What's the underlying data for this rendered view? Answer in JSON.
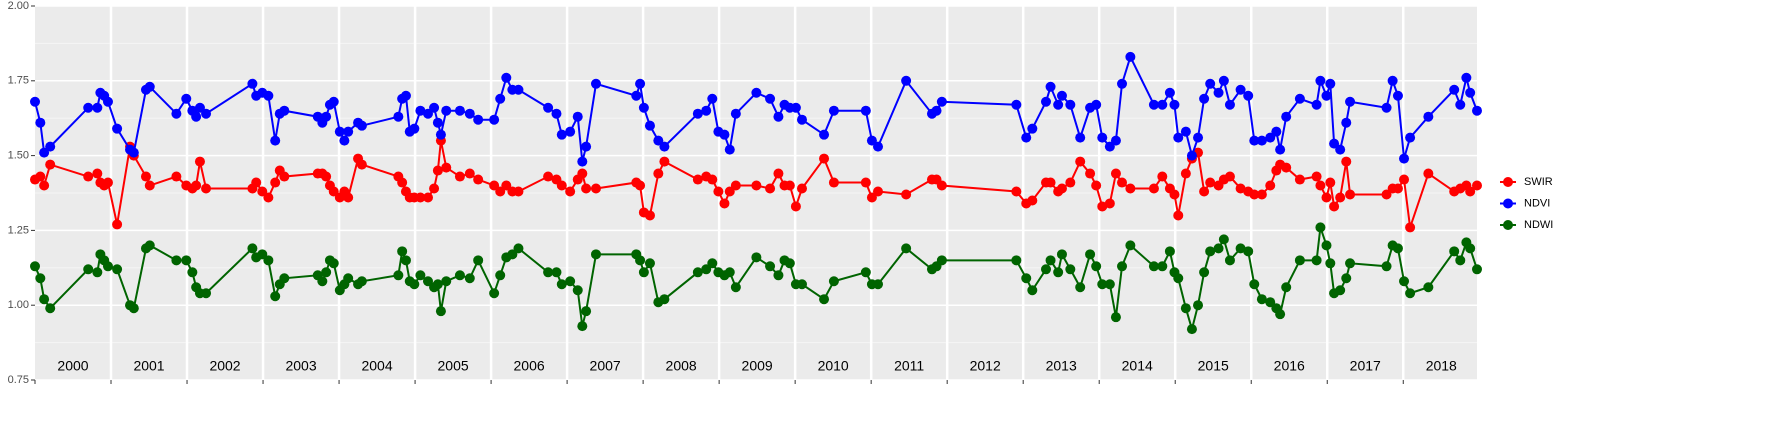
{
  "chart_data": {
    "type": "line",
    "x": [
      2000.0,
      2000.07,
      2000.12,
      2000.2,
      2000.7,
      2000.82,
      2000.86,
      2000.91,
      2000.96,
      2001.08,
      2001.25,
      2001.3,
      2001.46,
      2001.51,
      2001.86,
      2001.99,
      2002.07,
      2002.12,
      2002.17,
      2002.25,
      2002.86,
      2002.91,
      2002.99,
      2003.07,
      2003.16,
      2003.22,
      2003.28,
      2003.72,
      2003.78,
      2003.83,
      2003.88,
      2003.93,
      2004.01,
      2004.07,
      2004.12,
      2004.25,
      2004.3,
      2004.78,
      2004.83,
      2004.88,
      2004.93,
      2004.99,
      2005.07,
      2005.17,
      2005.25,
      2005.3,
      2005.34,
      2005.41,
      2005.59,
      2005.72,
      2005.83,
      2006.04,
      2006.12,
      2006.2,
      2006.28,
      2006.36,
      2006.75,
      2006.86,
      2006.93,
      2007.04,
      2007.14,
      2007.2,
      2007.25,
      2007.38,
      2007.91,
      2007.96,
      2008.01,
      2008.09,
      2008.2,
      2008.28,
      2008.72,
      2008.83,
      2008.91,
      2008.99,
      2009.07,
      2009.14,
      2009.22,
      2009.49,
      2009.67,
      2009.78,
      2009.86,
      2009.93,
      2010.01,
      2010.09,
      2010.38,
      2010.51,
      2010.93,
      2011.01,
      2011.09,
      2011.46,
      2011.8,
      2011.86,
      2011.93,
      2012.91,
      2013.04,
      2013.12,
      2013.3,
      2013.36,
      2013.46,
      2013.51,
      2013.62,
      2013.75,
      2013.88,
      2013.96,
      2014.04,
      2014.14,
      2014.22,
      2014.3,
      2014.41,
      2014.72,
      2014.83,
      2014.93,
      2014.99,
      2015.04,
      2015.14,
      2015.22,
      2015.3,
      2015.38,
      2015.46,
      2015.57,
      2015.64,
      2015.72,
      2015.86,
      2015.96,
      2016.04,
      2016.14,
      2016.25,
      2016.33,
      2016.38,
      2016.46,
      2016.64,
      2016.86,
      2016.91,
      2016.99,
      2017.04,
      2017.09,
      2017.17,
      2017.25,
      2017.3,
      2017.78,
      2017.86,
      2017.93,
      2018.01,
      2018.09,
      2018.33,
      2018.67,
      2018.75,
      2018.83,
      2018.88,
      2018.97
    ],
    "series": [
      {
        "name": "SWIR",
        "color": "#ff0000",
        "values": [
          1.42,
          1.43,
          1.4,
          1.47,
          1.43,
          1.44,
          1.41,
          1.4,
          1.41,
          1.27,
          1.53,
          1.5,
          1.43,
          1.4,
          1.43,
          1.4,
          1.39,
          1.4,
          1.48,
          1.39,
          1.39,
          1.41,
          1.38,
          1.36,
          1.41,
          1.45,
          1.43,
          1.44,
          1.44,
          1.43,
          1.4,
          1.38,
          1.36,
          1.38,
          1.36,
          1.49,
          1.47,
          1.43,
          1.41,
          1.38,
          1.36,
          1.36,
          1.36,
          1.36,
          1.39,
          1.45,
          1.55,
          1.46,
          1.43,
          1.44,
          1.42,
          1.4,
          1.38,
          1.4,
          1.38,
          1.38,
          1.43,
          1.42,
          1.4,
          1.38,
          1.42,
          1.44,
          1.39,
          1.39,
          1.41,
          1.4,
          1.31,
          1.3,
          1.44,
          1.48,
          1.42,
          1.43,
          1.42,
          1.38,
          1.34,
          1.38,
          1.4,
          1.4,
          1.39,
          1.44,
          1.4,
          1.4,
          1.33,
          1.39,
          1.49,
          1.41,
          1.41,
          1.36,
          1.38,
          1.37,
          1.42,
          1.42,
          1.4,
          1.38,
          1.34,
          1.35,
          1.41,
          1.41,
          1.38,
          1.39,
          1.41,
          1.48,
          1.44,
          1.4,
          1.33,
          1.34,
          1.44,
          1.41,
          1.39,
          1.39,
          1.43,
          1.39,
          1.37,
          1.3,
          1.44,
          1.49,
          1.51,
          1.38,
          1.41,
          1.4,
          1.42,
          1.43,
          1.39,
          1.38,
          1.37,
          1.37,
          1.4,
          1.45,
          1.47,
          1.46,
          1.42,
          1.43,
          1.4,
          1.36,
          1.41,
          1.33,
          1.36,
          1.48,
          1.37,
          1.37,
          1.39,
          1.39,
          1.42,
          1.26,
          1.44,
          1.38,
          1.39,
          1.4,
          1.38,
          1.4
        ]
      },
      {
        "name": "NDVI",
        "color": "#0000ff",
        "values": [
          1.68,
          1.61,
          1.51,
          1.53,
          1.66,
          1.66,
          1.71,
          1.7,
          1.68,
          1.59,
          1.52,
          1.51,
          1.72,
          1.73,
          1.64,
          1.69,
          1.65,
          1.63,
          1.66,
          1.64,
          1.74,
          1.7,
          1.71,
          1.7,
          1.55,
          1.64,
          1.65,
          1.63,
          1.61,
          1.63,
          1.67,
          1.68,
          1.58,
          1.55,
          1.58,
          1.61,
          1.6,
          1.63,
          1.69,
          1.7,
          1.58,
          1.59,
          1.65,
          1.64,
          1.66,
          1.61,
          1.57,
          1.65,
          1.65,
          1.64,
          1.62,
          1.62,
          1.69,
          1.76,
          1.72,
          1.72,
          1.66,
          1.64,
          1.57,
          1.58,
          1.63,
          1.48,
          1.53,
          1.74,
          1.7,
          1.74,
          1.66,
          1.6,
          1.55,
          1.53,
          1.64,
          1.65,
          1.69,
          1.58,
          1.57,
          1.52,
          1.64,
          1.71,
          1.69,
          1.63,
          1.67,
          1.66,
          1.66,
          1.62,
          1.57,
          1.65,
          1.65,
          1.55,
          1.53,
          1.75,
          1.64,
          1.65,
          1.68,
          1.67,
          1.56,
          1.59,
          1.68,
          1.73,
          1.67,
          1.7,
          1.67,
          1.56,
          1.66,
          1.67,
          1.56,
          1.53,
          1.55,
          1.74,
          1.83,
          1.67,
          1.67,
          1.71,
          1.67,
          1.56,
          1.58,
          1.5,
          1.56,
          1.69,
          1.74,
          1.71,
          1.75,
          1.67,
          1.72,
          1.7,
          1.55,
          1.55,
          1.56,
          1.58,
          1.52,
          1.63,
          1.69,
          1.67,
          1.75,
          1.7,
          1.74,
          1.54,
          1.52,
          1.61,
          1.68,
          1.66,
          1.75,
          1.7,
          1.49,
          1.56,
          1.63,
          1.72,
          1.67,
          1.76,
          1.71,
          1.65
        ]
      },
      {
        "name": "NDWI",
        "color": "#006400",
        "values": [
          1.13,
          1.09,
          1.02,
          0.99,
          1.12,
          1.11,
          1.17,
          1.15,
          1.13,
          1.12,
          1.0,
          0.99,
          1.19,
          1.2,
          1.15,
          1.15,
          1.11,
          1.06,
          1.04,
          1.04,
          1.19,
          1.16,
          1.17,
          1.15,
          1.03,
          1.07,
          1.09,
          1.1,
          1.08,
          1.11,
          1.15,
          1.14,
          1.05,
          1.07,
          1.09,
          1.07,
          1.08,
          1.1,
          1.18,
          1.15,
          1.08,
          1.07,
          1.1,
          1.08,
          1.06,
          1.07,
          0.98,
          1.08,
          1.1,
          1.09,
          1.15,
          1.04,
          1.1,
          1.16,
          1.17,
          1.19,
          1.11,
          1.11,
          1.07,
          1.08,
          1.05,
          0.93,
          0.98,
          1.17,
          1.17,
          1.15,
          1.11,
          1.14,
          1.01,
          1.02,
          1.11,
          1.12,
          1.14,
          1.11,
          1.1,
          1.11,
          1.06,
          1.16,
          1.13,
          1.1,
          1.15,
          1.14,
          1.07,
          1.07,
          1.02,
          1.08,
          1.11,
          1.07,
          1.07,
          1.19,
          1.12,
          1.13,
          1.15,
          1.15,
          1.09,
          1.05,
          1.12,
          1.15,
          1.11,
          1.17,
          1.12,
          1.06,
          1.17,
          1.13,
          1.07,
          1.07,
          0.96,
          1.13,
          1.2,
          1.13,
          1.13,
          1.18,
          1.11,
          1.09,
          0.99,
          0.92,
          1.0,
          1.11,
          1.18,
          1.19,
          1.22,
          1.15,
          1.19,
          1.18,
          1.07,
          1.02,
          1.01,
          0.99,
          0.97,
          1.06,
          1.15,
          1.15,
          1.26,
          1.2,
          1.14,
          1.04,
          1.05,
          1.09,
          1.14,
          1.13,
          1.2,
          1.19,
          1.08,
          1.04,
          1.06,
          1.18,
          1.15,
          1.21,
          1.19,
          1.12
        ]
      }
    ],
    "xlim": [
      2000,
      2018.97
    ],
    "xticks": [
      2000,
      2001,
      2002,
      2003,
      2004,
      2005,
      2006,
      2007,
      2008,
      2009,
      2010,
      2011,
      2012,
      2013,
      2014,
      2015,
      2016,
      2017,
      2018
    ],
    "ylim": [
      0.75,
      2.0
    ],
    "yticks": [
      0.75,
      {
        "value": 1,
        "label": "1.00"
      },
      1.25,
      {
        "value": 1.5,
        "label": "1.50"
      },
      1.75,
      {
        "value": 2,
        "label": "2.00"
      }
    ],
    "grid": true,
    "legend": "right"
  }
}
